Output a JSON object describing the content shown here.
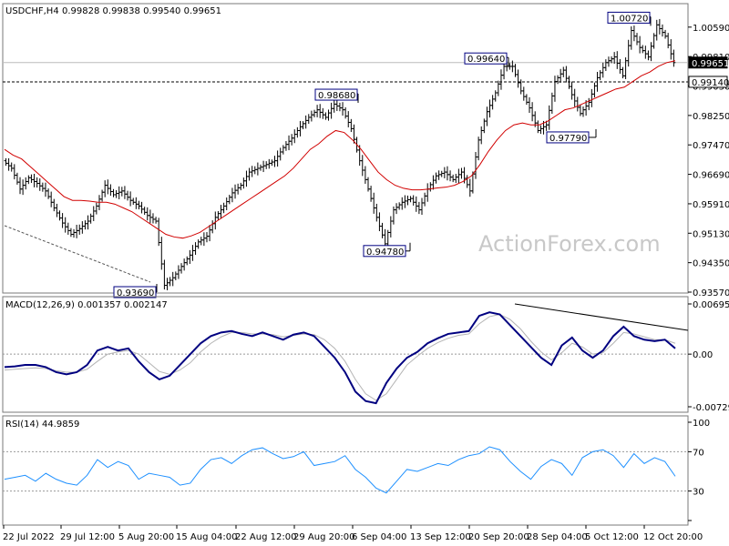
{
  "header": {
    "symbol": "USDCHF,H4",
    "ohlc": "0.99828 0.99838 0.99540 0.99651"
  },
  "watermark": "ActionForex.com",
  "chart_data": [
    {
      "type": "line",
      "panel": "price",
      "ylim": [
        0.9357,
        1.0073
      ],
      "y_ticks": [
        "1.00590",
        "0.99810",
        "0.99030",
        "0.98250",
        "0.97470",
        "0.96690",
        "0.95910",
        "0.95130",
        "0.94350",
        "0.93570"
      ],
      "x_labels": [
        "22 Jul 2022",
        "29 Jul 12:00",
        "5 Aug 20:00",
        "15 Aug 04:00",
        "22 Aug 12:00",
        "29 Aug 20:00",
        "6 Sep 04:00",
        "13 Sep 12:00",
        "20 Sep 20:00",
        "28 Sep 04:00",
        "5 Oct 12:00",
        "12 Oct 20:00"
      ],
      "current_price": {
        "value": 0.99651,
        "label": "0.99651"
      },
      "horizontal_line": {
        "value": 0.9914,
        "label": "0.99140"
      },
      "annotations": [
        {
          "label": "1.00720",
          "value": 1.0072
        },
        {
          "label": "0.99640",
          "value": 0.9964
        },
        {
          "label": "0.98680",
          "value": 0.9868
        },
        {
          "label": "0.97790",
          "value": 0.9779
        },
        {
          "label": "0.94780",
          "value": 0.9478
        },
        {
          "label": "0.93690",
          "value": 0.9369
        }
      ],
      "series": [
        {
          "values": [
            0.9705,
            0.9685,
            0.963,
            0.966,
            0.9645,
            0.9625,
            0.958,
            0.954,
            0.951,
            0.9525,
            0.9545,
            0.9585,
            0.964,
            0.9615,
            0.9625,
            0.96,
            0.9585,
            0.956,
            0.9545,
            0.9375,
            0.9395,
            0.9425,
            0.9455,
            0.949,
            0.9505,
            0.9555,
            0.9585,
            0.962,
            0.964,
            0.9675,
            0.9685,
            0.9695,
            0.9705,
            0.974,
            0.9765,
            0.9795,
            0.982,
            0.984,
            0.982,
            0.9855,
            0.984,
            0.979,
            0.9705,
            0.963,
            0.9555,
            0.9485,
            0.9575,
            0.9595,
            0.9605,
            0.9575,
            0.963,
            0.9665,
            0.9675,
            0.9655,
            0.9675,
            0.9625,
            0.976,
            0.9835,
            0.9885,
            0.9955,
            0.9955,
            0.989,
            0.9845,
            0.9785,
            0.98,
            0.9915,
            0.9945,
            0.988,
            0.983,
            0.986,
            0.9925,
            0.9965,
            0.998,
            0.993,
            1.005,
            1.0005,
            0.998,
            1.0065,
            1.0035,
            0.9965
          ]
        },
        {
          "values": [
            0.9735,
            0.972,
            0.971,
            0.969,
            0.967,
            0.965,
            0.963,
            0.961,
            0.96,
            0.96,
            0.9598,
            0.9595,
            0.9595,
            0.959,
            0.958,
            0.957,
            0.9555,
            0.954,
            0.9525,
            0.951,
            0.9503,
            0.95,
            0.9506,
            0.9515,
            0.953,
            0.9545,
            0.956,
            0.9575,
            0.959,
            0.9605,
            0.962,
            0.9635,
            0.965,
            0.9665,
            0.9685,
            0.971,
            0.9735,
            0.975,
            0.977,
            0.9785,
            0.978,
            0.976,
            0.9735,
            0.9705,
            0.9675,
            0.9655,
            0.964,
            0.9632,
            0.9628,
            0.9628,
            0.963,
            0.9633,
            0.9635,
            0.964,
            0.965,
            0.9665,
            0.9695,
            0.973,
            0.976,
            0.9785,
            0.98,
            0.9805,
            0.98,
            0.98,
            0.981,
            0.9825,
            0.984,
            0.9845,
            0.9855,
            0.9865,
            0.9875,
            0.9885,
            0.9895,
            0.99,
            0.9915,
            0.993,
            0.994,
            0.9955,
            0.9965,
            0.997
          ]
        }
      ]
    },
    {
      "type": "line",
      "panel": "macd",
      "label": "MACD(12,26,9) 0.001357 0.002147",
      "ylim": [
        -0.007294,
        0.006954
      ],
      "y_ticks": [
        "0.006954",
        "0.00",
        "-0.007294"
      ],
      "series": [
        {
          "values": [
            -0.0018,
            -0.0017,
            -0.0015,
            -0.0015,
            -0.0018,
            -0.0025,
            -0.0028,
            -0.0025,
            -0.0015,
            0.0005,
            0.001,
            0.0005,
            0.0008,
            -0.001,
            -0.0025,
            -0.0035,
            -0.003,
            -0.0015,
            0.0,
            0.0015,
            0.0025,
            0.003,
            0.0032,
            0.0028,
            0.0025,
            0.003,
            0.0025,
            0.002,
            0.0027,
            0.003,
            0.0025,
            0.001,
            -0.0005,
            -0.0025,
            -0.0052,
            -0.0065,
            -0.0068,
            -0.004,
            -0.002,
            -0.0005,
            0.0003,
            0.0015,
            0.0022,
            0.0028,
            0.003,
            0.0032,
            0.0053,
            0.0058,
            0.0055,
            0.004,
            0.0025,
            0.001,
            -0.0005,
            -0.0015,
            0.0012,
            0.0023,
            0.0005,
            -0.0005,
            0.0005,
            0.0025,
            0.0038,
            0.0025,
            0.002,
            0.0018,
            0.002,
            0.0008
          ]
        },
        {
          "values": [
            -0.0022,
            -0.0021,
            -0.002,
            -0.0019,
            -0.002,
            -0.0023,
            -0.0025,
            -0.0025,
            -0.0021,
            -0.001,
            0.0,
            0.0003,
            0.0005,
            0.0,
            -0.0012,
            -0.0024,
            -0.0028,
            -0.0022,
            -0.0012,
            0.0003,
            0.0015,
            0.0024,
            0.003,
            0.003,
            0.0028,
            0.0028,
            0.0027,
            0.0024,
            0.0026,
            0.0028,
            0.0027,
            0.002,
            0.0008,
            -0.001,
            -0.0035,
            -0.0055,
            -0.0064,
            -0.0055,
            -0.0035,
            -0.0015,
            -0.0003,
            0.0008,
            0.0016,
            0.0022,
            0.0026,
            0.0028,
            0.0042,
            0.0052,
            0.0055,
            0.0048,
            0.0035,
            0.0018,
            0.0003,
            -0.0008,
            0.0002,
            0.0015,
            0.001,
            0.0,
            0.0002,
            0.0015,
            0.003,
            0.0028,
            0.0024,
            0.002,
            0.002,
            0.0015
          ]
        }
      ]
    },
    {
      "type": "line",
      "panel": "rsi",
      "label": "RSI(14) 44.9859",
      "ylim": [
        0,
        100
      ],
      "y_ticks": [
        "100",
        "70",
        "30",
        "0"
      ],
      "levels": [
        70,
        30
      ],
      "series": [
        {
          "values": [
            42,
            44,
            46,
            40,
            48,
            42,
            38,
            36,
            46,
            62,
            54,
            60,
            56,
            42,
            48,
            46,
            44,
            36,
            38,
            52,
            62,
            64,
            58,
            66,
            72,
            74,
            68,
            63,
            65,
            70,
            56,
            58,
            60,
            66,
            52,
            44,
            33,
            28,
            40,
            52,
            50,
            54,
            58,
            56,
            62,
            66,
            68,
            75,
            72,
            60,
            50,
            42,
            55,
            62,
            58,
            46,
            64,
            70,
            72,
            66,
            54,
            68,
            58,
            64,
            60,
            45
          ]
        }
      ]
    }
  ]
}
